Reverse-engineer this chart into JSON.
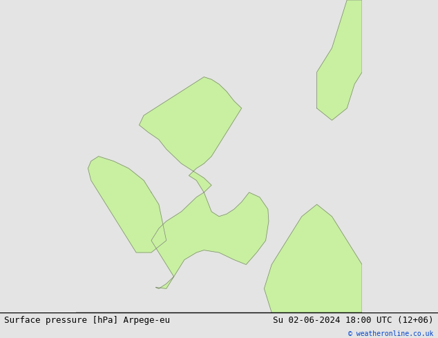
{
  "title_left": "Surface pressure [hPa] Arpege-eu",
  "title_right": "Su 02-06-2024 18:00 UTC (12+06)",
  "copyright": "© weatheronline.co.uk",
  "bg_color": "#e4e4e4",
  "land_color": "#c8f0a0",
  "contour_color": "#cc0000",
  "label_color": "#cc0000",
  "label_fontsize": 7.5,
  "title_fontsize": 9,
  "figsize": [
    6.34,
    4.9
  ],
  "dpi": 100,
  "xmin": -11.0,
  "xmax": 8.0,
  "ymin": 49.0,
  "ymax": 62.0
}
